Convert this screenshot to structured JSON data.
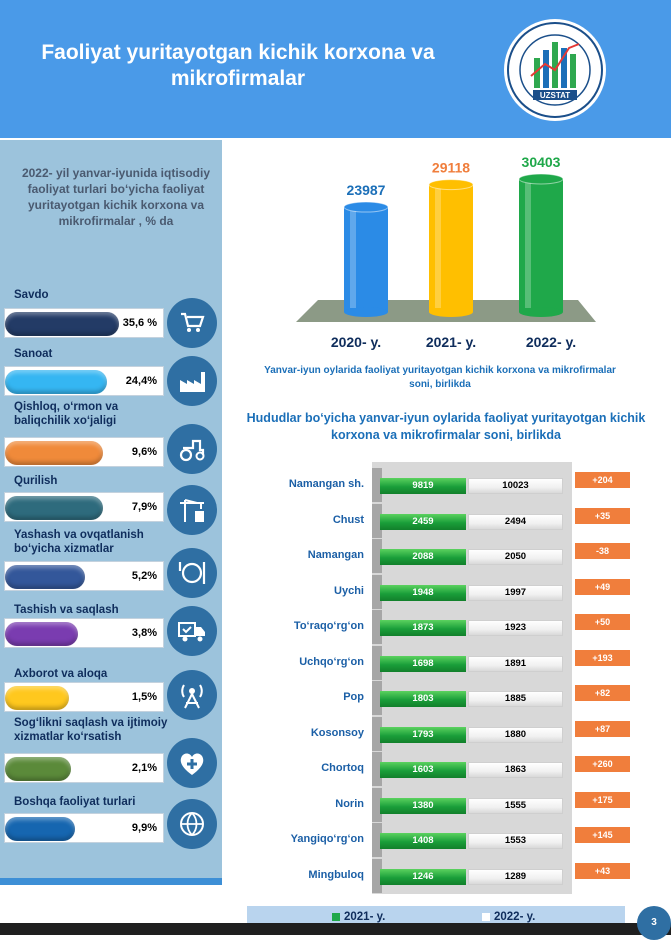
{
  "header": {
    "title": "Faoliyat  yuritayotgan kichik korxona va mikrofirmalar",
    "logo_text_top": "NAMANGAN VILOYATI",
    "logo_text_bottom": "STATISTIKA BOSHQARMASI",
    "logo_brand": "UZSTAT"
  },
  "left_panel": {
    "title": "2022- yil yanvar-iyunida iqtisodiy faoliyat turlari bo‘yicha faoliyat yuritayotgan kichik korxona va mikrofirmalar , % da",
    "categories": [
      {
        "label": "Savdo",
        "value_text": "35,6  %",
        "value": 35.6,
        "color": "#233b66",
        "icon": "shopping-cart-icon"
      },
      {
        "label": "Sanoat",
        "value_text": "24,4%",
        "value": 24.4,
        "color": "#35b6f2",
        "icon": "factory-icon"
      },
      {
        "label": "Qishloq, o‘rmon va baliqchilik xo‘jaligi",
        "value_text": "9,6%",
        "value": 9.6,
        "color": "#f08a3a",
        "icon": "tractor-icon"
      },
      {
        "label": "Qurilish",
        "value_text": "7,9%",
        "value": 7.9,
        "color": "#2e6b7d",
        "icon": "crane-icon"
      },
      {
        "label": "Yashash va ovqatlanish bo‘yicha xizmatlar",
        "value_text": "5,2%",
        "value": 5.2,
        "color": "#33579a",
        "icon": "dining-icon"
      },
      {
        "label": "Tashish va saqlash",
        "value_text": "3,8%",
        "value": 3.8,
        "color": "#7a3cb0",
        "icon": "delivery-truck-icon"
      },
      {
        "label": "Axborot va aloqa",
        "value_text": "1,5%",
        "value": 1.5,
        "color": "#ffc81e",
        "icon": "antenna-icon"
      },
      {
        "label": "Sog‘likni saqlash va ijtimoiy xizmatlar ko‘rsatish",
        "value_text": "2,1%",
        "value": 2.1,
        "color": "#5b8a3a",
        "icon": "health-heart-icon"
      },
      {
        "label": "Boshqa faoliyat turlari",
        "value_text": "9,9%",
        "value": 9.9,
        "color": "#1666b0",
        "icon": "globe-icon"
      }
    ]
  },
  "chart_data": [
    {
      "type": "bar",
      "categories": [
        "2020- y.",
        "2021- y.",
        "2022- y."
      ],
      "values": [
        23987,
        29118,
        30403
      ],
      "value_labels": [
        "23987",
        "29118",
        "30403"
      ],
      "colors": [
        "#2b8be6",
        "#ffbf00",
        "#1fa84a"
      ],
      "label_colors": [
        "#1b6fb8",
        "#f07e3c",
        "#1fa84a"
      ],
      "caption": "Yanvar-iyun oylarida faoliyat yuritayotgan kichik korxona va mikrofirmalar soni, birlikda"
    },
    {
      "type": "bar",
      "title": "Hududlar bo‘yicha yanvar-iyun oylarida faoliyat yuritayotgan kichik korxona va mikrofirmalar soni, birlikda",
      "categories": [
        "Namangan sh.",
        "Chust",
        "Namangan",
        "Uychi",
        "To‘raqo‘rg‘on",
        "Uchqo‘rg‘on",
        "Pop",
        "Kosonsoy",
        "Chortoq",
        "Norin",
        "Yangiqo‘rg‘on",
        "Mingbuloq"
      ],
      "series": [
        {
          "name": "2021- y.",
          "values": [
            9819,
            2459,
            2088,
            1948,
            1873,
            1698,
            1803,
            1793,
            1603,
            1380,
            1408,
            1246
          ]
        },
        {
          "name": "2022- y.",
          "values": [
            10023,
            2494,
            2050,
            1997,
            1923,
            1891,
            1885,
            1880,
            1863,
            1555,
            1553,
            1289
          ]
        }
      ],
      "differences": [
        "+204",
        "+35",
        "-38",
        "+49",
        "+50",
        "+193",
        "+82",
        "+87",
        "+260",
        "+175",
        "+145",
        "+43"
      ],
      "series_colors": [
        "#1fa84a",
        "#ffffff"
      ],
      "legend_position": "bottom"
    }
  ],
  "footer": {
    "page_number": "3"
  }
}
